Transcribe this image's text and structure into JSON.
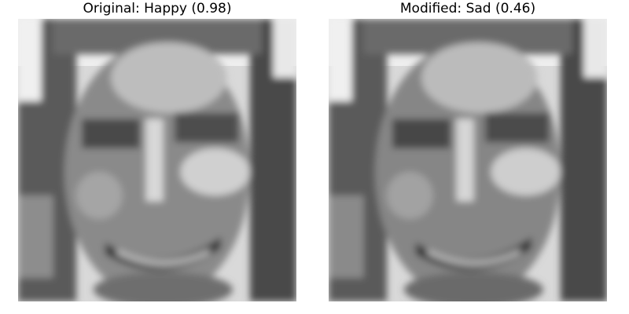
{
  "panels": [
    {
      "title": "Original: Happy (0.98)"
    },
    {
      "title": "Modified: Sad (0.46)"
    }
  ],
  "image": {
    "content": "grayscale pixelated face crop, smiling woman with long hair"
  }
}
